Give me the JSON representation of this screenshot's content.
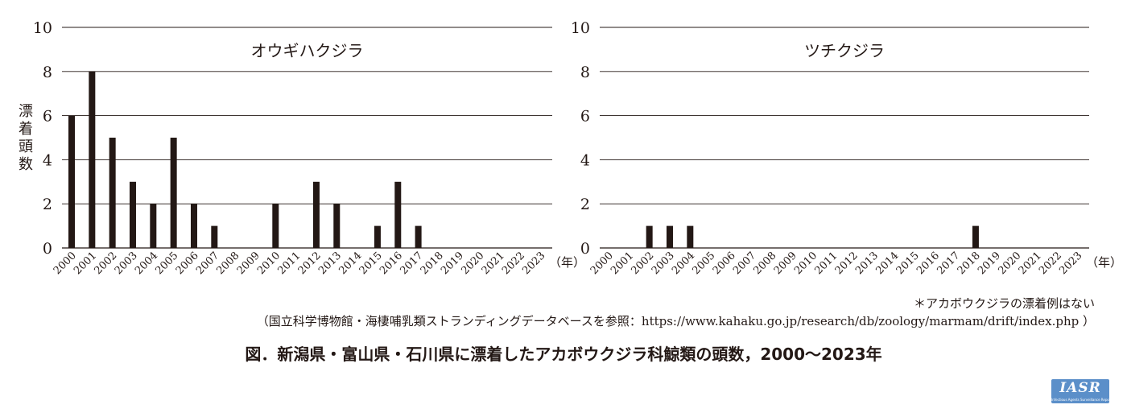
{
  "chart_data": [
    {
      "type": "bar",
      "title": "オウギハクジラ",
      "ylabel": "漂着頭数",
      "xlabel": "（年）",
      "ylim": [
        0,
        10
      ],
      "yticks": [
        0,
        2,
        4,
        6,
        8,
        10
      ],
      "grid": true,
      "categories": [
        "2000",
        "2001",
        "2002",
        "2003",
        "2004",
        "2005",
        "2006",
        "2007",
        "2008",
        "2009",
        "2010",
        "2011",
        "2012",
        "2013",
        "2014",
        "2015",
        "2016",
        "2017",
        "2018",
        "2019",
        "2020",
        "2021",
        "2022",
        "2023"
      ],
      "values": [
        6,
        8,
        5,
        3,
        2,
        5,
        2,
        1,
        0,
        0,
        2,
        0,
        3,
        2,
        0,
        1,
        3,
        1,
        0,
        0,
        0,
        0,
        0,
        0
      ]
    },
    {
      "type": "bar",
      "title": "ツチクジラ",
      "ylabel": "",
      "xlabel": "（年）",
      "ylim": [
        0,
        10
      ],
      "yticks": [
        0,
        2,
        4,
        6,
        8,
        10
      ],
      "grid": true,
      "categories": [
        "2000",
        "2001",
        "2002",
        "2003",
        "2004",
        "2005",
        "2006",
        "2007",
        "2008",
        "2009",
        "2010",
        "2011",
        "2012",
        "2013",
        "2014",
        "2015",
        "2016",
        "2017",
        "2018",
        "2019",
        "2020",
        "2021",
        "2022",
        "2023"
      ],
      "values": [
        0,
        0,
        1,
        1,
        1,
        0,
        0,
        0,
        0,
        0,
        0,
        0,
        0,
        0,
        0,
        0,
        0,
        0,
        1,
        0,
        0,
        0,
        0,
        0
      ]
    }
  ],
  "notes": {
    "asterisk": "＊アカボウクジラの漂着例はない",
    "source": "（国立科学博物館・海棲哺乳類ストランディングデータベースを参照：https://www.kahaku.go.jp/research/db/zoology/marmam/drift/index.php ）"
  },
  "figure_title": "図．新潟県・富山県・石川県に漂着したアカボウクジラ科鯨類の頭数，2000〜2023年",
  "logo": {
    "text": "IASR",
    "subtitle": "Infectious Agents Surveillance Report"
  },
  "colors": {
    "bar": "#231815",
    "grid": "#231815",
    "logo_bg": "#5b8fc9"
  }
}
